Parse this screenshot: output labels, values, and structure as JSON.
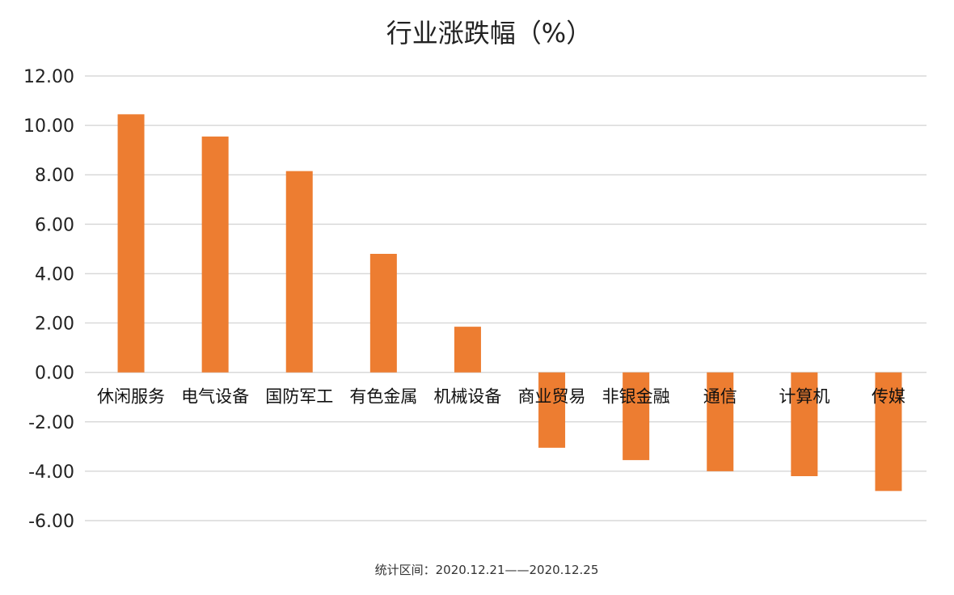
{
  "chart_data": {
    "type": "bar",
    "title": "行业涨跌幅（%）",
    "footnote": "统计区间：2020.12.21——2020.12.25",
    "categories": [
      "休闲服务",
      "电气设备",
      "国防军工",
      "有色金属",
      "机械设备",
      "商业贸易",
      "非银金融",
      "通信",
      "计算机",
      "传媒"
    ],
    "series": [
      {
        "values": [
          10.45,
          9.55,
          8.15,
          4.8,
          1.85,
          -3.05,
          -3.55,
          -4.0,
          -4.2,
          -4.8
        ]
      }
    ],
    "yticks": [
      "12.00",
      "10.00",
      "8.00",
      "6.00",
      "4.00",
      "2.00",
      "0.00",
      "-2.00",
      "-4.00",
      "-6.00"
    ],
    "ylim": [
      -6,
      12
    ],
    "grid": true,
    "legend": "none",
    "bar_color": "#ED7D31",
    "grid_color": "#D9D9D9"
  }
}
